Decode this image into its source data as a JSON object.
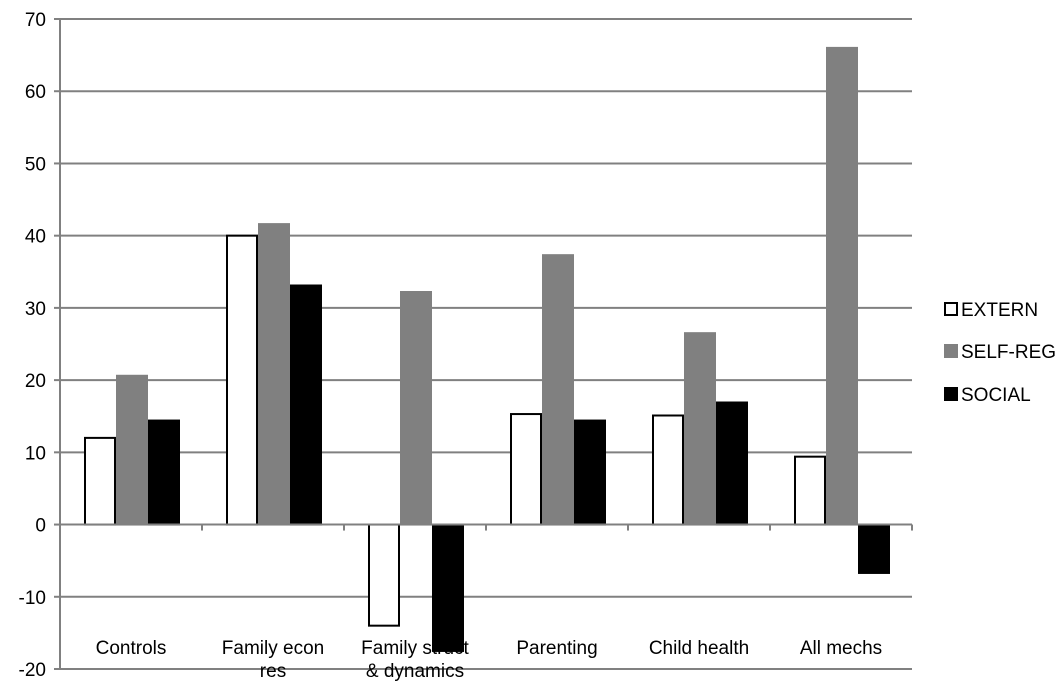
{
  "chart_data": {
    "type": "bar",
    "title": "",
    "xlabel": "",
    "ylabel": "",
    "ylim": [
      -20,
      70
    ],
    "yticks": [
      -20,
      -10,
      0,
      10,
      20,
      30,
      40,
      50,
      60,
      70
    ],
    "grid": true,
    "legend_position": "right",
    "categories": [
      [
        "Controls"
      ],
      [
        "Family econ",
        "res"
      ],
      [
        "Family struct",
        "& dynamics"
      ],
      [
        "Parenting"
      ],
      [
        "Child health"
      ],
      [
        "All mechs"
      ]
    ],
    "series": [
      {
        "name": "EXTERN",
        "values": [
          12,
          40,
          -14,
          15.3,
          15.1,
          9.4
        ],
        "color": "#ffffff",
        "stroke": "#000000"
      },
      {
        "name": "SELF-REG",
        "values": [
          20.6,
          41.6,
          32.2,
          37.3,
          26.5,
          66
        ],
        "color": "#808080",
        "stroke": "#808080"
      },
      {
        "name": "SOCIAL",
        "values": [
          14.4,
          33.1,
          -17.5,
          14.4,
          16.9,
          -6.7
        ],
        "color": "#000000",
        "stroke": "#000000"
      }
    ],
    "colors": {
      "grid": "#808080",
      "axis": "#808080"
    }
  }
}
